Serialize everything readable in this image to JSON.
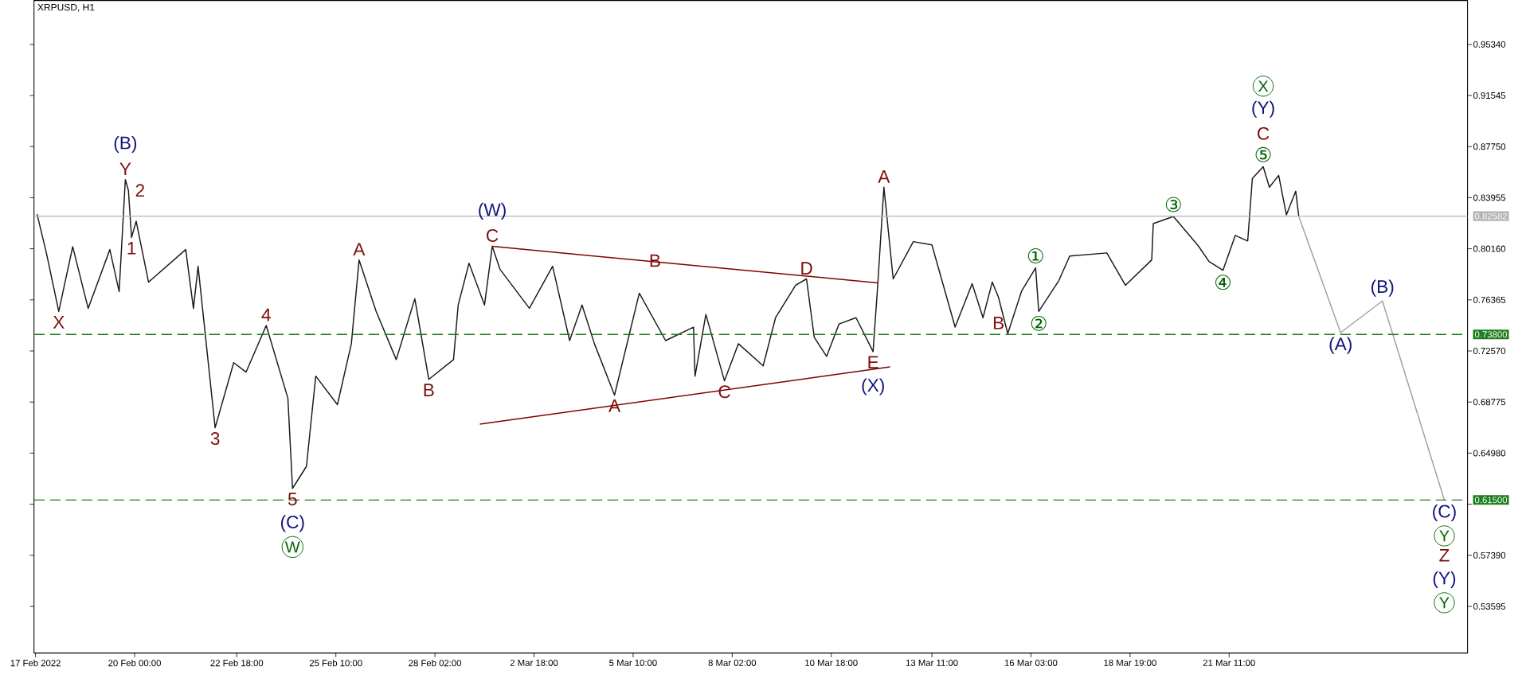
{
  "chart_data": {
    "type": "line",
    "title": "XRPUSD, H1",
    "xlim": [
      "2022-02-17T07:00",
      "2022-03-27T21:00"
    ],
    "xticks": [
      {
        "value": "2022-02-17T08:00",
        "label": "17 Feb 2022"
      },
      {
        "value": "2022-02-20T00:00",
        "label": "20 Feb 00:00"
      },
      {
        "value": "2022-02-22T18:00",
        "label": "22 Feb 18:00"
      },
      {
        "value": "2022-02-25T10:00",
        "label": "25 Feb 10:00"
      },
      {
        "value": "2022-02-28T02:00",
        "label": "28 Feb 02:00"
      },
      {
        "value": "2022-03-02T18:00",
        "label": "2 Mar 18:00"
      },
      {
        "value": "2022-03-05T10:00",
        "label": "5 Mar 10:00"
      },
      {
        "value": "2022-03-08T02:00",
        "label": "8 Mar 02:00"
      },
      {
        "value": "2022-03-10T18:00",
        "label": "10 Mar 18:00"
      },
      {
        "value": "2022-03-13T11:00",
        "label": "13 Mar 11:00"
      },
      {
        "value": "2022-03-16T03:00",
        "label": "16 Mar 03:00"
      },
      {
        "value": "2022-03-18T19:00",
        "label": "18 Mar 19:00"
      },
      {
        "value": "2022-03-21T11:00",
        "label": "21 Mar 11:00"
      }
    ],
    "ylim": [
      0.5013,
      0.986
    ],
    "yticks": [
      {
        "value": 0.53595,
        "label": "0.53595"
      },
      {
        "value": 0.5739,
        "label": "0.57390"
      },
      {
        "value": 0.61185,
        "label": null
      },
      {
        "value": 0.6498,
        "label": "0.64980"
      },
      {
        "value": 0.68775,
        "label": "0.68775"
      },
      {
        "value": 0.7257,
        "label": "0.72570"
      },
      {
        "value": 0.76365,
        "label": "0.76365"
      },
      {
        "value": 0.8016,
        "label": "0.80160"
      },
      {
        "value": 0.83955,
        "label": "0.83955"
      },
      {
        "value": 0.8775,
        "label": "0.87750"
      },
      {
        "value": 0.91545,
        "label": "0.91545"
      },
      {
        "value": 0.9534,
        "label": "0.95340"
      }
    ],
    "series": [
      {
        "color": "#1a1a1a",
        "x": [
          "2022-02-17T09:00",
          "2022-02-17T15:00",
          "2022-02-17T23:00",
          "2022-02-18T08:00",
          "2022-02-18T18:00",
          "2022-02-19T08:00",
          "2022-02-19T14:00",
          "2022-02-19T18:00",
          "2022-02-19T20:00",
          "2022-02-19T22:00",
          "2022-02-20T01:00",
          "2022-02-20T09:00",
          "2022-02-21T09:00",
          "2022-02-21T14:00",
          "2022-02-21T17:00",
          "2022-02-22T04:00",
          "2022-02-22T16:00",
          "2022-02-23T00:00",
          "2022-02-23T13:00",
          "2022-02-24T03:00",
          "2022-02-24T06:00",
          "2022-02-24T15:00",
          "2022-02-24T21:00",
          "2022-02-25T11:00",
          "2022-02-25T20:00",
          "2022-02-26T01:00",
          "2022-02-26T12:00",
          "2022-02-27T01:00",
          "2022-02-27T13:00",
          "2022-02-27T22:00",
          "2022-02-28T14:00",
          "2022-02-28T17:00",
          "2022-03-01T00:00",
          "2022-03-01T10:00",
          "2022-03-01T15:00",
          "2022-03-01T20:00",
          "2022-03-02T15:00",
          "2022-03-03T06:00",
          "2022-03-03T17:00",
          "2022-03-04T01:00",
          "2022-03-04T09:00",
          "2022-03-04T22:00",
          "2022-03-05T14:00",
          "2022-03-06T07:00",
          "2022-03-07T01:00",
          "2022-03-07T02:00",
          "2022-03-07T09:00",
          "2022-03-07T21:00",
          "2022-03-08T06:00",
          "2022-03-08T22:00",
          "2022-03-09T06:00",
          "2022-03-09T19:00",
          "2022-03-10T02:00",
          "2022-03-10T07:00",
          "2022-03-10T15:00",
          "2022-03-10T23:00",
          "2022-03-11T10:00",
          "2022-03-11T21:00",
          "2022-03-12T00:00",
          "2022-03-12T04:00",
          "2022-03-12T10:00",
          "2022-03-12T23:00",
          "2022-03-13T11:00",
          "2022-03-14T02:00",
          "2022-03-14T13:00",
          "2022-03-14T20:00",
          "2022-03-15T02:00",
          "2022-03-15T06:00",
          "2022-03-15T12:00",
          "2022-03-15T21:00",
          "2022-03-16T06:00",
          "2022-03-16T08:00",
          "2022-03-16T21:00",
          "2022-03-17T04:00",
          "2022-03-18T04:00",
          "2022-03-18T16:00",
          "2022-03-19T09:00",
          "2022-03-19T10:00",
          "2022-03-19T23:00",
          "2022-03-20T15:00",
          "2022-03-20T22:00",
          "2022-03-21T07:00",
          "2022-03-21T15:00",
          "2022-03-21T23:00",
          "2022-03-22T02:00",
          "2022-03-22T09:00",
          "2022-03-22T13:00",
          "2022-03-22T19:00",
          "2022-03-23T00:00",
          "2022-03-23T06:00",
          "2022-03-23T08:00"
        ],
        "values": [
          0.8273,
          0.7985,
          0.755,
          0.8032,
          0.7573,
          0.801,
          0.7698,
          0.853,
          0.845,
          0.81,
          0.8221,
          0.7768,
          0.801,
          0.7573,
          0.7886,
          0.6687,
          0.717,
          0.71,
          0.7446,
          0.6906,
          0.6236,
          0.64,
          0.707,
          0.6858,
          0.7311,
          0.7933,
          0.7551,
          0.7193,
          0.7645,
          0.7046,
          0.7193,
          0.7598,
          0.7909,
          0.7598,
          0.8034,
          0.7864,
          0.7574,
          0.7886,
          0.7334,
          0.7598,
          0.7311,
          0.6929,
          0.7686,
          0.7334,
          0.7434,
          0.707,
          0.7528,
          0.7035,
          0.7311,
          0.7146,
          0.7504,
          0.7745,
          0.7792,
          0.7358,
          0.7217,
          0.7457,
          0.7504,
          0.7252,
          0.7745,
          0.8473,
          0.7792,
          0.8069,
          0.8045,
          0.7434,
          0.7757,
          0.7504,
          0.7769,
          0.7656,
          0.7386,
          0.7703,
          0.7874,
          0.7551,
          0.778,
          0.7962,
          0.7985,
          0.7745,
          0.7933,
          0.8203,
          0.8256,
          0.8039,
          0.7921,
          0.7856,
          0.8115,
          0.8074,
          0.8538,
          0.8626,
          0.8473,
          0.8561,
          0.8268,
          0.8444,
          0.8256
        ]
      },
      {
        "color": "#800000",
        "x": [
          "2022-03-01T15:00",
          "2022-03-05T16:00",
          "2022-03-12T00:00"
        ],
        "values": [
          0.8034,
          0.7928,
          0.7763
        ]
      },
      {
        "color": "#800000",
        "x": [
          "2022-03-01T07:00",
          "2022-03-12T08:00"
        ],
        "values": [
          0.6713,
          0.7139
        ]
      },
      {
        "color": "#a0a0a0",
        "x": [
          "2022-03-23T08:00",
          "2022-03-24T11:00",
          "2022-03-25T14:00",
          "2022-03-27T06:00"
        ],
        "values": [
          0.8256,
          0.7393,
          0.7628,
          0.615
        ]
      }
    ],
    "ref_lines": [
      {
        "axis": "y",
        "value": 0.82582,
        "label": "0.82582",
        "color": "#b4b4b4",
        "line_style": "solid"
      },
      {
        "axis": "y",
        "value": 0.738,
        "label": "0.73800",
        "color": "#1e7d1e",
        "line_style": "dashed"
      },
      {
        "axis": "y",
        "value": 0.615,
        "label": "0.61500",
        "color": "#1e7d1e",
        "line_style": "dashed"
      }
    ],
    "annotations": [
      {
        "text": "X",
        "x": "2022-02-17T23:00",
        "y": 0.755
      },
      {
        "text": "Y",
        "x": "2022-02-19T18:00",
        "y": 0.853
      },
      {
        "text": "(B)",
        "x": "2022-02-19T18:00",
        "y": 0.853
      },
      {
        "text": "2",
        "x": "2022-02-19T20:00",
        "y": 0.845
      },
      {
        "text": "1",
        "x": "2022-02-19T22:00",
        "y": 0.81
      },
      {
        "text": "3",
        "x": "2022-02-22T04:00",
        "y": 0.6687
      },
      {
        "text": "4",
        "x": "2022-02-23T13:00",
        "y": 0.7446
      },
      {
        "text": "5",
        "x": "2022-02-24T06:00",
        "y": 0.6236
      },
      {
        "text": "(C)",
        "x": "2022-02-24T06:00",
        "y": 0.6236
      },
      "W",
      {
        "text": "A",
        "x": "2022-02-26T01:00",
        "y": 0.7933
      },
      {
        "text": "B",
        "x": "2022-02-27T22:00",
        "y": 0.7046
      },
      {
        "text": "C",
        "x": "2022-03-01T15:00",
        "y": 0.8034
      },
      {
        "text": "(W)",
        "x": "2022-03-01T15:00",
        "y": 0.8034
      },
      {
        "text": "B",
        "x": "2022-03-05T16:00",
        "y": 0.7928
      },
      {
        "text": "A",
        "x": "2022-03-04T22:00",
        "y": 0.6929
      },
      {
        "text": "C",
        "x": "2022-03-07T21:00",
        "y": 0.7035
      },
      {
        "text": "D",
        "x": "2022-03-10T02:00",
        "y": 0.7792
      },
      {
        "text": "E",
        "x": "2022-03-11T21:00",
        "y": 0.7252
      },
      {
        "text": "(X)",
        "x": "2022-03-11T21:00",
        "y": 0.7252
      },
      {
        "text": "A",
        "x": "2022-03-12T04:00",
        "y": 0.8473
      },
      {
        "text": "B",
        "x": "2022-03-15T06:00",
        "y": 0.7386
      },
      {
        "text": "①",
        "x": "2022-03-16T06:00",
        "y": 0.7874
      },
      {
        "text": "②",
        "x": "2022-03-16T08:00",
        "y": 0.7551
      },
      {
        "text": "③",
        "x": "2022-03-19T23:00",
        "y": 0.8256
      },
      {
        "text": "④",
        "x": "2022-03-21T07:00",
        "y": 0.7856
      },
      {
        "text": "⑤",
        "x": "2022-03-22T09:00",
        "y": 0.8626
      },
      {
        "text": "C",
        "x": "2022-03-22T09:00",
        "y": 0.8626
      },
      {
        "text": "(Y)",
        "x": "2022-03-22T09:00",
        "y": 0.8626
      },
      "X",
      {
        "text": "(A)",
        "x": "2022-03-24T11:00",
        "y": 0.7393
      },
      {
        "text": "(B)",
        "x": "2022-03-25T14:00",
        "y": 0.7628
      },
      {
        "text": "(C)",
        "x": "2022-03-27T06:00",
        "y": 0.615
      },
      {
        "text": "Y",
        "x": "2022-03-27T06:00",
        "y": 0.615
      },
      {
        "text": "Z",
        "x": "2022-03-27T06:00",
        "y": 0.615
      },
      "(Y)",
      "Y"
    ]
  }
}
